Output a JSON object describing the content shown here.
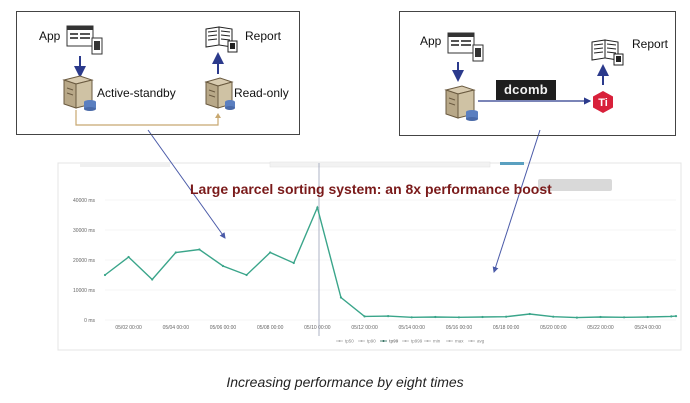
{
  "caption": "Increasing performance by eight times",
  "left_panel": {
    "app_label": "App",
    "report_label": "Report",
    "primary_label": "Active-standby",
    "replica_label": "Read-only"
  },
  "right_panel": {
    "app_label": "App",
    "report_label": "Report",
    "middleware_logo_text": "dcomb",
    "db_logo_text": "Ti"
  },
  "icons": [
    "app-window-icon",
    "report-book-icon",
    "server-icon",
    "server-icon",
    "tidb-logo-icon"
  ],
  "colors": {
    "line": "#3aa58a",
    "title": "#7a1a1a",
    "arrow": "#4a5aa8",
    "sync": "#c8a870"
  },
  "chart_data": {
    "type": "line",
    "title": "Large parcel sorting system: an 8x performance boost",
    "xlabel": "",
    "ylabel": "",
    "x_ticks": [
      "05/02 00:00",
      "05/04 00:00",
      "05/06 00:00",
      "05/08 00:00",
      "05/10 00:00",
      "05/12 00:00",
      "05/14 00:00",
      "05/16 00:00",
      "05/18 00:00",
      "05/20 00:00",
      "05/22 00:00",
      "05/24 00:00"
    ],
    "y_ticks": [
      "0 ms",
      "10000 ms",
      "20000 ms",
      "30000 ms",
      "40000 ms"
    ],
    "ylim": [
      0,
      40000
    ],
    "xlim": [
      0,
      24.2
    ],
    "grid": "horizontal",
    "legend": [
      "tp50",
      "tp90",
      "tp99",
      "tp999",
      "min",
      "max",
      "avg"
    ],
    "legend_active": "tp99",
    "legend_placement": "bottom",
    "series": [
      {
        "name": "tp99",
        "x": [
          0,
          1,
          2,
          3,
          4,
          5,
          6,
          7,
          8,
          9,
          10,
          11,
          12,
          13,
          14,
          15,
          16,
          17,
          18,
          19,
          20,
          21,
          22,
          23,
          24,
          24.2
        ],
        "values": [
          15000,
          21000,
          13500,
          22500,
          23500,
          18000,
          15000,
          22500,
          19000,
          37500,
          7500,
          1200,
          1300,
          900,
          1000,
          900,
          1000,
          1100,
          2000,
          1100,
          800,
          1000,
          900,
          1000,
          1200,
          1300
        ]
      }
    ]
  }
}
